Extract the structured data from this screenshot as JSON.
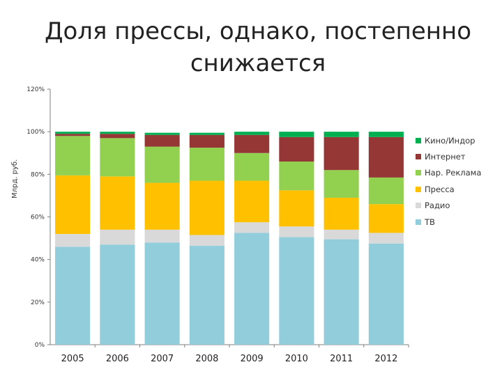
{
  "title": "Доля прессы, однако, постепенно снижается",
  "chart_data": {
    "type": "bar",
    "stacked": true,
    "categories": [
      "2005",
      "2006",
      "2007",
      "2008",
      "2009",
      "2010",
      "2011",
      "2012"
    ],
    "ylabel": "Млрд. руб.",
    "ylim": [
      0,
      1.2
    ],
    "yticks": [
      "0%",
      "20%",
      "40%",
      "60%",
      "80%",
      "100%",
      "120%"
    ],
    "grid": false,
    "legend_position": "right",
    "series": [
      {
        "name": "ТВ",
        "color": "#92CDDC",
        "values": [
          0.46,
          0.47,
          0.48,
          0.465,
          0.525,
          0.505,
          0.495,
          0.475
        ]
      },
      {
        "name": "Радио",
        "color": "#D9D9D9",
        "values": [
          0.06,
          0.07,
          0.06,
          0.05,
          0.05,
          0.05,
          0.045,
          0.05
        ]
      },
      {
        "name": "Пресса",
        "color": "#FFC000",
        "values": [
          0.275,
          0.25,
          0.22,
          0.255,
          0.195,
          0.17,
          0.15,
          0.135
        ]
      },
      {
        "name": "Нар. Реклама",
        "color": "#92D050",
        "values": [
          0.185,
          0.18,
          0.17,
          0.155,
          0.13,
          0.135,
          0.13,
          0.125
        ]
      },
      {
        "name": "Интернет",
        "color": "#953735",
        "values": [
          0.01,
          0.02,
          0.055,
          0.06,
          0.085,
          0.115,
          0.155,
          0.19
        ]
      },
      {
        "name": "Кино/Индор",
        "color": "#00B050",
        "values": [
          0.01,
          0.01,
          0.01,
          0.01,
          0.015,
          0.025,
          0.025,
          0.025
        ]
      }
    ]
  }
}
